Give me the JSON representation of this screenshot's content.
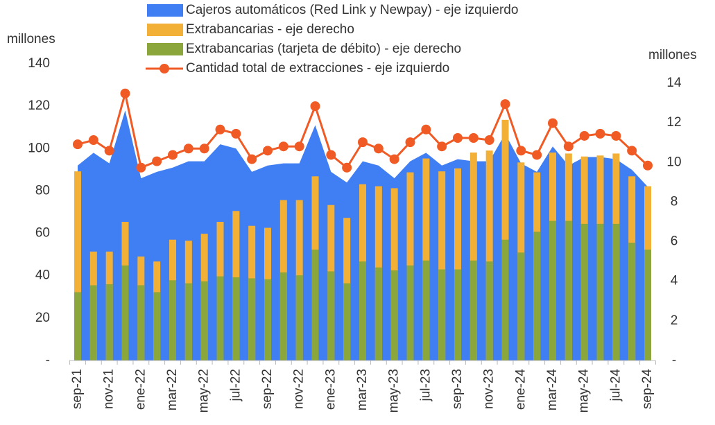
{
  "chart_data": {
    "type": "combo",
    "left_unit": "millones",
    "right_unit": "millones",
    "categories": [
      "sep-21",
      null,
      "nov-21",
      null,
      "ene-22",
      null,
      "mar-22",
      null,
      "may-22",
      null,
      "jul-22",
      null,
      "sep-22",
      null,
      "nov-22",
      null,
      "ene-23",
      null,
      "mar-23",
      null,
      "may-23",
      null,
      "jul-23",
      null,
      "sep-23",
      null,
      "nov-23",
      null,
      "ene-24",
      null,
      "mar-24",
      null,
      "may-24",
      null,
      "jul-24",
      null,
      "sep-24"
    ],
    "series": [
      {
        "name": "Cajeros automáticos (Red Link y Newpay) - eje izquierdo",
        "kind": "area",
        "axis": "y",
        "color": "#3f7ef3",
        "values": [
          92,
          98,
          93,
          118,
          86,
          89,
          91,
          94,
          94,
          102,
          100,
          89,
          92,
          93,
          93,
          111,
          89,
          84,
          94,
          92,
          86,
          94,
          98,
          92,
          95,
          94,
          94,
          107,
          93,
          89,
          101,
          92,
          96,
          96,
          95,
          90,
          82
        ]
      },
      {
        "name": "Extrabancarias - eje derecho",
        "kind": "bar",
        "axis": "y2",
        "color": "#f2b136",
        "values": [
          9.55,
          5.5,
          5.5,
          7.0,
          5.25,
          5.0,
          6.1,
          6.05,
          6.4,
          7.0,
          7.55,
          6.8,
          6.7,
          8.1,
          8.1,
          9.3,
          7.85,
          7.2,
          8.9,
          8.8,
          8.7,
          9.5,
          10.2,
          9.55,
          9.7,
          10.5,
          10.6,
          12.15,
          10.0,
          9.5,
          10.5,
          10.45,
          10.3,
          10.35,
          10.45,
          9.3,
          8.8
        ]
      },
      {
        "name": "Extrabancarias (tarjeta de débito) - eje derecho",
        "kind": "bar",
        "axis": "y2",
        "color": "#8ba63b",
        "values": [
          3.45,
          3.8,
          3.85,
          4.8,
          3.8,
          3.45,
          4.05,
          3.9,
          4.0,
          4.25,
          4.2,
          4.15,
          4.1,
          4.45,
          4.3,
          5.6,
          4.5,
          3.9,
          5.0,
          4.7,
          4.55,
          4.8,
          5.05,
          4.6,
          4.6,
          5.05,
          5.0,
          6.1,
          5.45,
          6.5,
          7.05,
          7.05,
          6.9,
          6.9,
          6.9,
          5.95,
          5.6
        ]
      },
      {
        "name": "Cantidad total de extracciones - eje izquierdo",
        "kind": "line",
        "axis": "y",
        "color": "#f05a24",
        "values": [
          102,
          104,
          99,
          126,
          91,
          94,
          97,
          100,
          100,
          109,
          107,
          95,
          99,
          101,
          101,
          120,
          97,
          91,
          103,
          100,
          95,
          103,
          109,
          101,
          105,
          105,
          104,
          121,
          99,
          97,
          112,
          101,
          106,
          107,
          106,
          99,
          92
        ]
      }
    ],
    "ylim": [
      0,
      140
    ],
    "yticks": [
      {
        "value": 0,
        "label": "-"
      },
      20,
      40,
      60,
      80,
      100,
      120,
      140
    ],
    "y2lim": [
      0,
      14
    ],
    "y2ticks": [
      {
        "value": 0,
        "label": "-"
      },
      2,
      4,
      6,
      8,
      10,
      12,
      14
    ]
  }
}
